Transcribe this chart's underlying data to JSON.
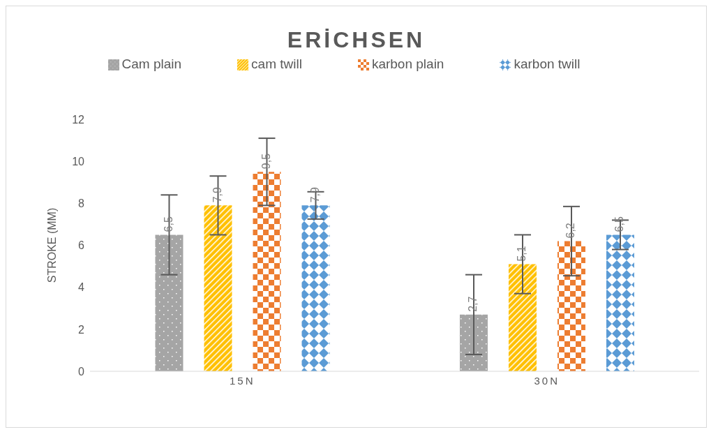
{
  "chart_data": {
    "type": "bar",
    "title": "ERİCHSEN",
    "ylabel": "STROKE (MM)",
    "categories": [
      "15N",
      "30N"
    ],
    "series": [
      {
        "name": "Cam plain",
        "color": "#a5a5a5",
        "values": [
          6.5,
          2.7
        ],
        "errors": [
          1.9,
          1.9
        ],
        "value_labels": [
          "6,5",
          "2,7"
        ]
      },
      {
        "name": "cam twill",
        "color": "#ffc000",
        "values": [
          7.9,
          5.1
        ],
        "errors": [
          1.4,
          1.4
        ],
        "value_labels": [
          "7,9",
          "5,1"
        ]
      },
      {
        "name": "karbon plain",
        "color": "#ed7d31",
        "values": [
          9.5,
          6.2
        ],
        "errors": [
          1.6,
          1.65
        ],
        "value_labels": [
          "9,5",
          "6,2"
        ]
      },
      {
        "name": "karbon twill",
        "color": "#5b9bd5",
        "values": [
          7.9,
          6.5
        ],
        "errors": [
          0.65,
          0.7
        ],
        "value_labels": [
          "7,9",
          "6,5"
        ]
      }
    ],
    "ylim": [
      0,
      12
    ],
    "yticks": [
      0,
      2,
      4,
      6,
      8,
      10,
      12
    ],
    "legend": "top"
  }
}
